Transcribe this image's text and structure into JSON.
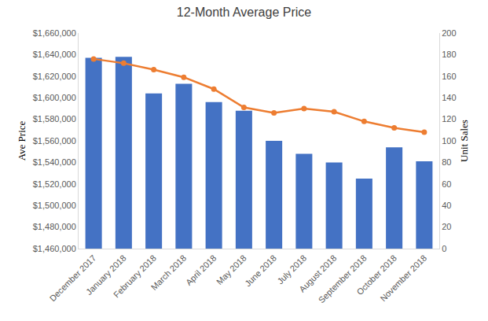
{
  "chart_data": {
    "type": "bar",
    "title": "12-Month Average Price",
    "y_label": "Ave Price",
    "y2_label": "Unit Sales",
    "categories": [
      "December 2017",
      "January 2018",
      "February 2018",
      "March 2018",
      "April 2018",
      "May 2018",
      "June 2018",
      "July 2018",
      "August 2018",
      "September 2018",
      "October 2018",
      "November 2018"
    ],
    "series": [
      {
        "type": "bar",
        "color": "#4472c4",
        "values": [
          1637000,
          1638000,
          1604000,
          1613000,
          1596000,
          1588000,
          1560000,
          1548000,
          1540000,
          1525000,
          1554000,
          1541000
        ]
      },
      {
        "type": "line",
        "color": "#ed7d31",
        "marker": "circle",
        "axis": "y2",
        "values": [
          176,
          172,
          166,
          159,
          148,
          131,
          126,
          130,
          127,
          118,
          112,
          108
        ]
      }
    ],
    "ylim": [
      1460000,
      1660000
    ],
    "yticks": [
      {
        "value": 1460000,
        "label": "$1,460,000"
      },
      {
        "value": 1480000,
        "label": "$1,480,000"
      },
      {
        "value": 1500000,
        "label": "$1,500,000"
      },
      {
        "value": 1520000,
        "label": "$1,520,000"
      },
      {
        "value": 1540000,
        "label": "$1,540,000"
      },
      {
        "value": 1560000,
        "label": "$1,560,000"
      },
      {
        "value": 1580000,
        "label": "$1,580,000"
      },
      {
        "value": 1600000,
        "label": "$1,600,000"
      },
      {
        "value": 1620000,
        "label": "$1,620,000"
      },
      {
        "value": 1640000,
        "label": "$1,640,000"
      },
      {
        "value": 1660000,
        "label": "$1,660,000"
      }
    ],
    "y2lim": [
      0,
      200
    ],
    "y2ticks": [
      0,
      20,
      40,
      60,
      80,
      100,
      120,
      140,
      160,
      180,
      200
    ],
    "grid": false
  }
}
